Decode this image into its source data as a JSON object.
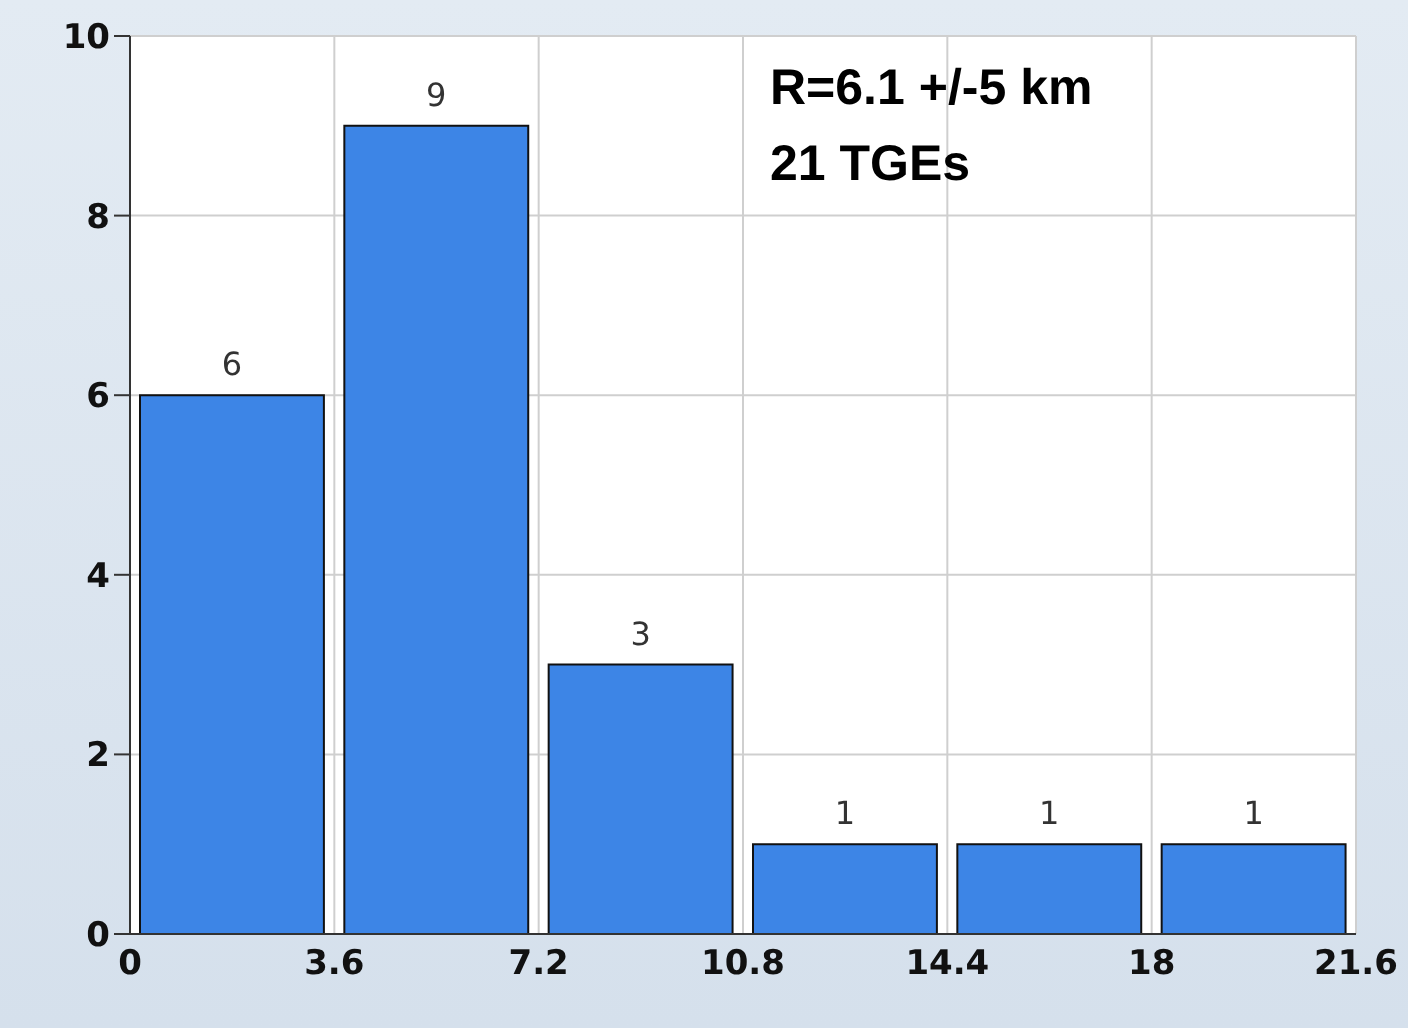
{
  "chart_data": {
    "type": "histogram",
    "bins": [
      0,
      3.6,
      7.2,
      10.8,
      14.4,
      18,
      21.6
    ],
    "values": [
      6,
      9,
      3,
      1,
      1,
      1
    ],
    "color": "#3d85e6",
    "xlim": [
      0,
      21.6
    ],
    "xticks": [
      0,
      3.6,
      7.2,
      10.8,
      14.4,
      18,
      21.6
    ],
    "ylim": [
      0,
      10
    ],
    "yticks": [
      0,
      2,
      4,
      6,
      8,
      10
    ],
    "grid": true,
    "data_labels": true,
    "annotations": [
      "R=6.1 +/-5 km",
      "21 TGEs"
    ]
  }
}
